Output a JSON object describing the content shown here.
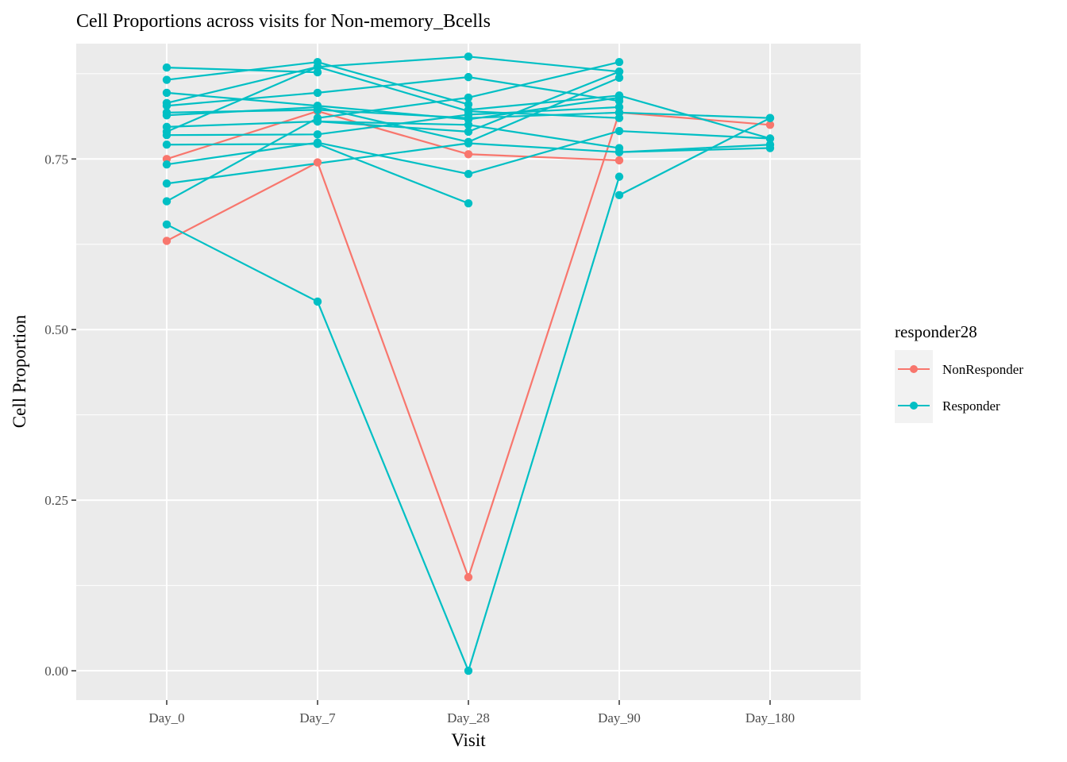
{
  "chart_data": {
    "type": "line",
    "title": "Cell Proportions across visits for Non-memory_Bcells",
    "xlabel": "Visit",
    "ylabel": "Cell Proportion",
    "categories": [
      "Day_0",
      "Day_7",
      "Day_28",
      "Day_90",
      "Day_180"
    ],
    "ylim": [
      -0.043,
      0.919
    ],
    "yticks": [
      0.0,
      0.25,
      0.5,
      0.75
    ],
    "ytick_labels": [
      "0.00",
      "0.25",
      "0.50",
      "0.75"
    ],
    "grid": true,
    "legend": {
      "title": "responder28",
      "position": "right",
      "entries": [
        {
          "label": "NonResponder",
          "color": "#F8766D"
        },
        {
          "label": "Responder",
          "color": "#00BFC4"
        }
      ]
    },
    "series": [
      {
        "group": "NonResponder",
        "values": [
          0.75,
          0.82,
          0.757,
          0.748,
          null
        ]
      },
      {
        "group": "NonResponder",
        "values": [
          0.63,
          0.745,
          0.137,
          0.818,
          0.8
        ]
      },
      {
        "group": "Responder",
        "values": [
          0.884,
          0.877,
          null,
          null,
          null
        ]
      },
      {
        "group": "Responder",
        "values": [
          0.866,
          0.892,
          0.83,
          null,
          null
        ]
      },
      {
        "group": "Responder",
        "values": [
          0.847,
          0.828,
          0.808,
          0.84,
          null
        ]
      },
      {
        "group": "Responder",
        "values": [
          0.832,
          0.885,
          0.82,
          0.81,
          null
        ]
      },
      {
        "group": "Responder",
        "values": [
          0.828,
          0.847,
          0.87,
          0.835,
          null
        ]
      },
      {
        "group": "Responder",
        "values": [
          0.818,
          0.822,
          0.81,
          0.818,
          0.81
        ]
      },
      {
        "group": "Responder",
        "values": [
          0.814,
          0.826,
          0.775,
          0.869,
          null
        ]
      },
      {
        "group": "Responder",
        "values": [
          0.797,
          0.805,
          0.79,
          0.878,
          null
        ]
      },
      {
        "group": "Responder",
        "values": [
          0.79,
          0.885,
          0.9,
          0.878,
          null
        ]
      },
      {
        "group": "Responder",
        "values": [
          0.785,
          0.786,
          0.815,
          0.826,
          null
        ]
      },
      {
        "group": "Responder",
        "values": [
          0.771,
          0.772,
          0.685,
          null,
          null
        ]
      },
      {
        "group": "Responder",
        "values": [
          0.742,
          0.774,
          0.728,
          0.791,
          0.78
        ]
      },
      {
        "group": "Responder",
        "values": [
          0.714,
          null,
          0.773,
          0.76,
          0.771
        ]
      },
      {
        "group": "Responder",
        "values": [
          0.688,
          0.81,
          0.84,
          0.892,
          null
        ]
      },
      {
        "group": "Responder",
        "values": [
          0.654,
          0.541,
          0.0,
          0.724,
          null
        ]
      },
      {
        "group": "Responder",
        "values": [
          null,
          0.805,
          0.8,
          0.766,
          null
        ]
      },
      {
        "group": "Responder",
        "values": [
          null,
          null,
          0.822,
          0.843,
          0.78
        ]
      },
      {
        "group": "Responder",
        "values": [
          null,
          null,
          null,
          0.697,
          0.81
        ]
      },
      {
        "group": "Responder",
        "values": [
          null,
          null,
          null,
          0.76,
          0.766
        ]
      }
    ]
  }
}
